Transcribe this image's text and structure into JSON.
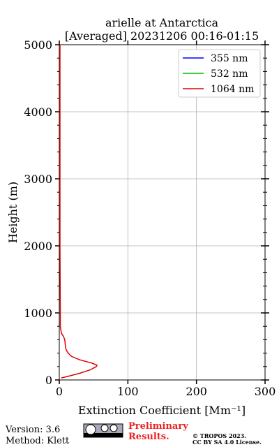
{
  "chart_data": {
    "type": "line",
    "title": [
      "arielle at Antarctica",
      "[Averaged] 20231206 00:16-01:15"
    ],
    "xlabel": "Extinction Coefficient [Mm⁻¹]",
    "ylabel": "Height (m)",
    "y": [
      30,
      60,
      100,
      150,
      200,
      220,
      250,
      300,
      350,
      400,
      450,
      500,
      600,
      650,
      700,
      800,
      1000,
      2000,
      3000,
      4000,
      5000
    ],
    "series": [
      {
        "name": "355 nm",
        "color": "#0000ff",
        "values": [
          null,
          null,
          null,
          null,
          null,
          null,
          null,
          null,
          null,
          null,
          null,
          null,
          null,
          null,
          null,
          null,
          null,
          null,
          null,
          null,
          null
        ]
      },
      {
        "name": "532 nm",
        "color": "#00bb00",
        "values": [
          null,
          null,
          null,
          null,
          null,
          null,
          null,
          null,
          null,
          null,
          null,
          null,
          null,
          null,
          null,
          null,
          null,
          null,
          null,
          null,
          null
        ]
      },
      {
        "name": "1064 nm",
        "color": "#dd0000",
        "values": [
          3,
          15,
          30,
          45,
          54,
          55,
          48,
          30,
          18,
          13,
          10,
          9,
          8,
          6,
          3,
          1.5,
          1.5,
          1,
          1,
          1,
          1
        ]
      }
    ],
    "xlim": [
      0,
      300
    ],
    "xticks": [
      0,
      100,
      200,
      300
    ],
    "ylim": [
      0,
      5000
    ],
    "yticks": [
      0,
      1000,
      2000,
      3000,
      4000,
      5000
    ],
    "grid": true,
    "legend": "upper right"
  },
  "footer": {
    "version": "Version: 3.6",
    "method": "Method: Klett",
    "preliminary": [
      "Preliminary",
      "Results."
    ],
    "copyright": [
      "© TROPOS 2023.",
      "CC BY SA 4.0 License."
    ]
  }
}
